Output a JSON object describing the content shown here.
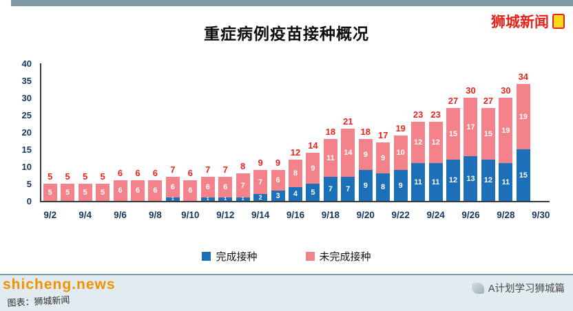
{
  "header": {
    "brand": "狮城新闻"
  },
  "chart_data": {
    "type": "bar",
    "stacked": true,
    "title": "重症病例疫苗接种概况",
    "categories": [
      "9/2",
      "9/3",
      "9/4",
      "9/5",
      "9/6",
      "9/7",
      "9/8",
      "9/9",
      "9/10",
      "9/11",
      "9/12",
      "9/13",
      "9/14",
      "9/15",
      "9/16",
      "9/17",
      "9/18",
      "9/19",
      "9/20",
      "9/21",
      "9/22",
      "9/23",
      "9/24",
      "9/25",
      "9/26",
      "9/27",
      "9/28",
      "9/29"
    ],
    "x_tick_labels": [
      "9/2",
      "9/4",
      "9/6",
      "9/8",
      "9/10",
      "9/12",
      "9/14",
      "9/16",
      "9/18",
      "9/20",
      "9/22",
      "9/24",
      "9/26",
      "9/28",
      "9/30"
    ],
    "series": [
      {
        "name": "完成接种",
        "color": "#1d6fb8",
        "values": [
          0,
          0,
          0,
          0,
          0,
          0,
          0,
          1,
          0,
          1,
          1,
          1,
          2,
          3,
          4,
          5,
          7,
          7,
          9,
          8,
          9,
          11,
          11,
          12,
          13,
          12,
          11,
          15
        ]
      },
      {
        "name": "未完成接种",
        "color": "#f4828a",
        "values": [
          5,
          5,
          5,
          5,
          6,
          6,
          6,
          6,
          6,
          6,
          6,
          7,
          7,
          6,
          8,
          9,
          11,
          14,
          9,
          9,
          10,
          12,
          12,
          15,
          17,
          15,
          19,
          19
        ]
      }
    ],
    "totals": [
      5,
      5,
      5,
      5,
      6,
      6,
      6,
      7,
      6,
      7,
      7,
      8,
      9,
      9,
      12,
      14,
      18,
      21,
      18,
      17,
      19,
      23,
      23,
      27,
      30,
      27,
      30,
      34
    ],
    "ylim": [
      0,
      40
    ],
    "y_ticks": [
      0,
      5,
      10,
      15,
      20,
      25,
      30,
      35,
      40
    ],
    "grid": false,
    "legend_position": "bottom",
    "colors": {
      "total_label": "#e8251d",
      "axis_label": "#16365c"
    }
  },
  "footer": {
    "site": "shicheng.news",
    "credit": "图表：狮城新闻",
    "channel": "A计划学习狮城篇"
  }
}
